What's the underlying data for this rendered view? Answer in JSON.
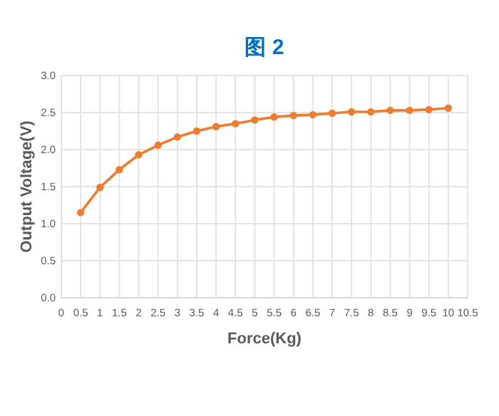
{
  "chart_data": {
    "type": "line",
    "title": "图 2",
    "xlabel": "Force(Kg)",
    "ylabel": "Output Voltage(V)",
    "x": [
      0.5,
      1,
      1.5,
      2,
      2.5,
      3,
      3.5,
      4,
      4.5,
      5,
      5.5,
      6,
      6.5,
      7,
      7.5,
      8,
      8.5,
      9,
      9.5,
      10
    ],
    "series": [
      {
        "color": "#ed7d31",
        "values": [
          1.15,
          1.49,
          1.73,
          1.93,
          2.06,
          2.17,
          2.25,
          2.31,
          2.35,
          2.4,
          2.44,
          2.46,
          2.47,
          2.49,
          2.51,
          2.51,
          2.53,
          2.53,
          2.54,
          2.56
        ]
      }
    ],
    "xlim": [
      0,
      10.5
    ],
    "ylim": [
      0,
      3
    ],
    "xticks": [
      0,
      0.5,
      1,
      1.5,
      2,
      2.5,
      3,
      3.5,
      4,
      4.5,
      5,
      5.5,
      6,
      6.5,
      7,
      7.5,
      8,
      8.5,
      9,
      9.5,
      10,
      10.5
    ],
    "yticks": [
      {
        "value": 0,
        "label": "0.0"
      },
      {
        "value": 0.5,
        "label": "0.5"
      },
      {
        "value": 1,
        "label": "1.0"
      },
      {
        "value": 1.5,
        "label": "1.5"
      },
      {
        "value": 2,
        "label": "2.0"
      },
      {
        "value": 2.5,
        "label": "2.5"
      },
      {
        "value": 3,
        "label": "3.0"
      }
    ],
    "grid": true,
    "marker": "circle",
    "line_style": "solid"
  }
}
